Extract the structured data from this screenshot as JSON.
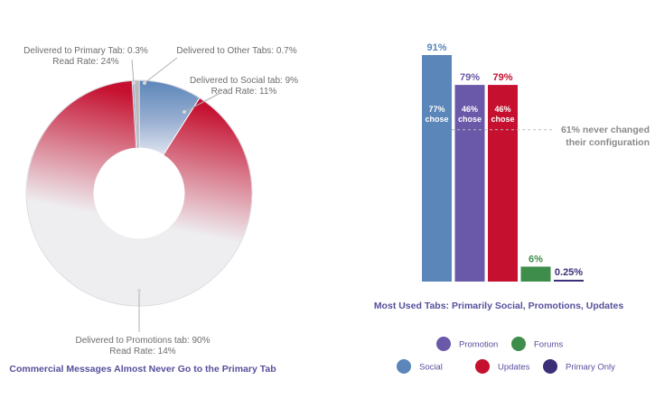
{
  "chart_data": [
    {
      "type": "pie",
      "title": "Commercial Messages Almost Never Go to the Primary Tab",
      "slices": [
        {
          "name": "Social",
          "value": 9,
          "color": "#5b86b9",
          "label_line1": "Delivered to Social tab: 9%",
          "label_line2": "Read Rate: 11%"
        },
        {
          "name": "Promotions",
          "value": 90,
          "color_start": "#e8e8ec",
          "color_end": "#c5102f",
          "label_line1": "Delivered to Promotions tab: 90%",
          "label_line2": "Read Rate: 14%"
        },
        {
          "name": "Primary",
          "value": 0.3,
          "color": "#9aa4c6",
          "label_line1": "Delivered to Primary Tab: 0.3%",
          "label_line2": "Read Rate: 24%"
        },
        {
          "name": "Other",
          "value": 0.7,
          "color": "#b9b9bd",
          "label_line1": "Delivered to Other Tabs: 0.7%",
          "label_line2": ""
        }
      ]
    },
    {
      "type": "bar",
      "title": "Most Used Tabs: Primarily Social, Promotions, Updates",
      "ylim": [
        0,
        100
      ],
      "bars": [
        {
          "name": "Social",
          "value": 91,
          "label": "91%",
          "color": "#5b86b9",
          "inner_value": "77%",
          "inner_word": "chose"
        },
        {
          "name": "Promotion",
          "value": 79,
          "label": "79%",
          "color": "#6a58a8",
          "inner_value": "46%",
          "inner_word": "chose"
        },
        {
          "name": "Updates",
          "value": 79,
          "label": "79%",
          "color": "#c5102f",
          "inner_value": "46%",
          "inner_word": "chose"
        },
        {
          "name": "Forums",
          "value": 6,
          "label": "6%",
          "color": "#3e8d4a",
          "inner_value": "",
          "inner_word": ""
        },
        {
          "name": "Primary Only",
          "value": 0.25,
          "label": "0.25%",
          "color": "#3b2f78",
          "inner_value": "",
          "inner_word": ""
        }
      ],
      "reference_line": {
        "value": 61,
        "text_line1": "61% never changed",
        "text_line2": "their configuration"
      },
      "legend": [
        {
          "name": "Promotion",
          "color": "#6a58a8"
        },
        {
          "name": "Forums",
          "color": "#3e8d4a"
        },
        {
          "name": "Social",
          "color": "#5b86b9"
        },
        {
          "name": "Updates",
          "color": "#c5102f"
        },
        {
          "name": "Primary Only",
          "color": "#3b2f78"
        }
      ]
    }
  ]
}
